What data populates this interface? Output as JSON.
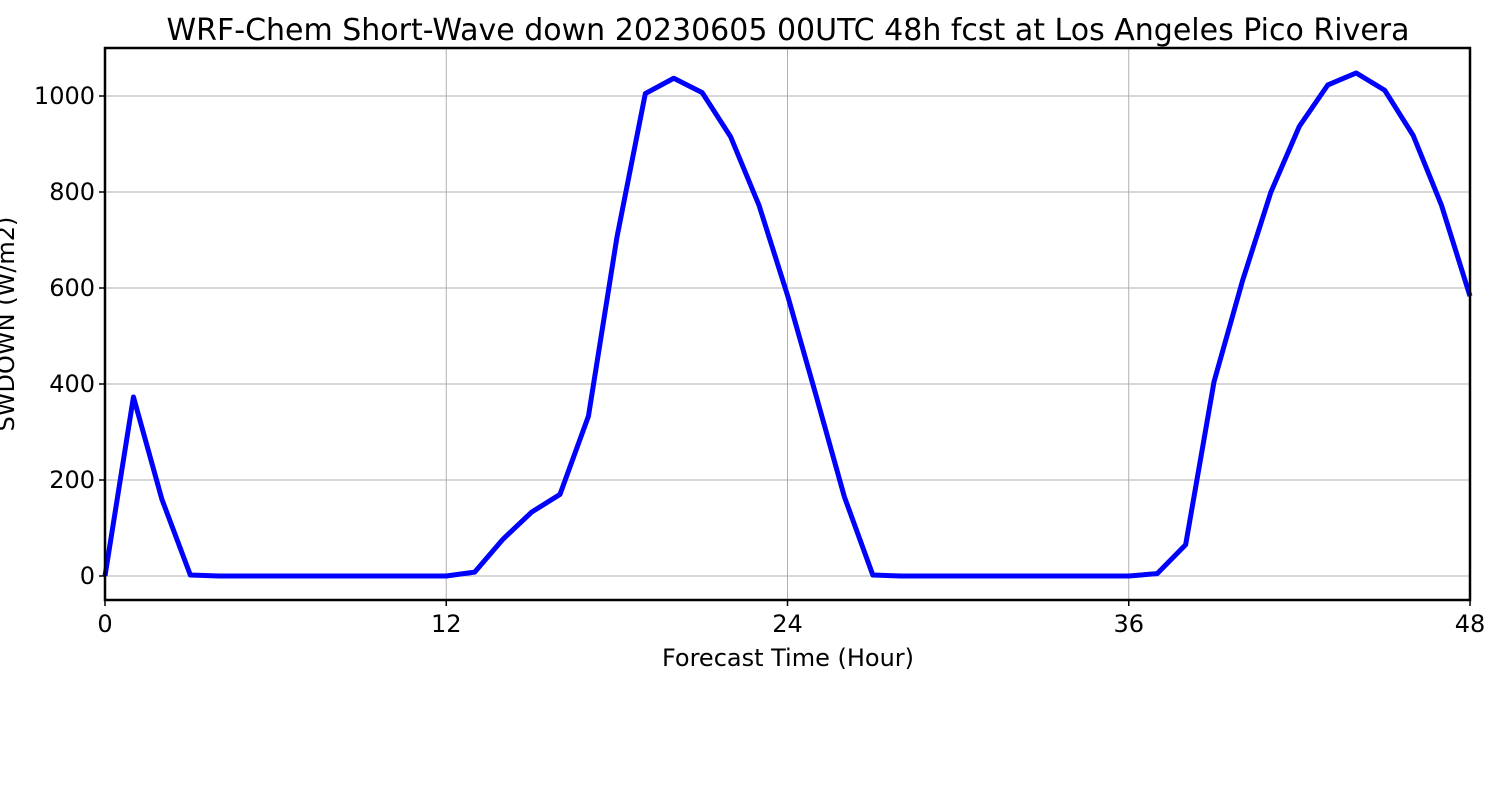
{
  "chart_data": {
    "type": "line",
    "title": "WRF-Chem Short-Wave down  20230605 00UTC 48h fcst at Los Angeles Pico Rivera",
    "xlabel": "Forecast Time (Hour)",
    "ylabel": "SWDOWN  (W/m2)",
    "xlim": [
      0,
      48
    ],
    "ylim": [
      -50,
      1100
    ],
    "xticks": [
      "0",
      "12",
      "24",
      "36",
      "48"
    ],
    "yticks": [
      "0",
      "200",
      "400",
      "600",
      "800",
      "1000"
    ],
    "grid": true,
    "line_color": "#0000ff",
    "x": [
      0,
      1,
      2,
      3,
      4,
      5,
      6,
      7,
      8,
      9,
      10,
      11,
      12,
      13,
      14,
      15,
      16,
      17,
      18,
      19,
      20,
      21,
      22,
      23,
      24,
      25,
      26,
      27,
      28,
      29,
      30,
      31,
      32,
      33,
      34,
      35,
      36,
      37,
      38,
      39,
      40,
      41,
      42,
      43,
      44,
      45,
      46,
      47,
      48
    ],
    "series": [
      {
        "values": [
          0,
          373,
          160,
          2,
          0,
          0,
          0,
          0,
          0,
          0,
          0,
          0,
          0,
          8,
          77,
          133,
          170,
          333,
          705,
          1005,
          1037,
          1007,
          915,
          772,
          585,
          377,
          165,
          2,
          0,
          0,
          0,
          0,
          0,
          0,
          0,
          0,
          0,
          5,
          65,
          405,
          615,
          800,
          937,
          1023,
          1048,
          1012,
          918,
          772,
          583
        ]
      }
    ]
  }
}
